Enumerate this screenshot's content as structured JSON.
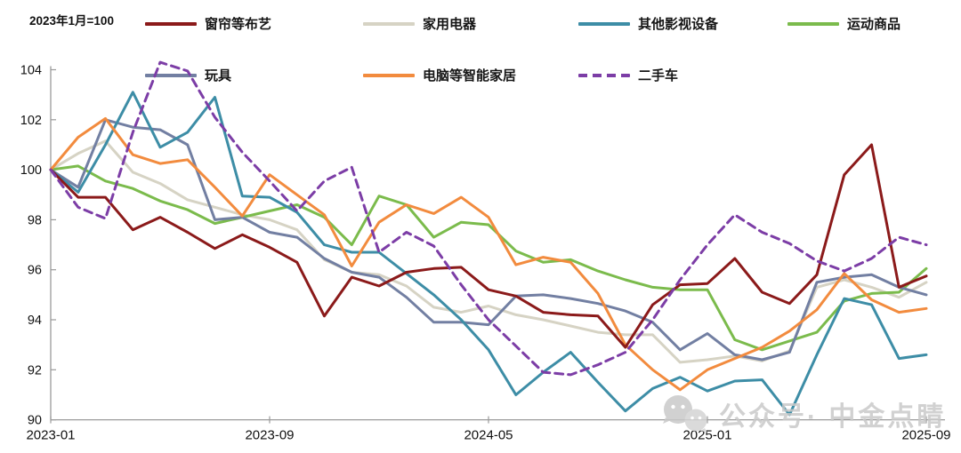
{
  "note": "2023年1月=100",
  "watermark": {
    "text": "公众号· 中金点睛"
  },
  "chart_data": {
    "type": "line",
    "index_note": "2023年1月=100",
    "ylim": [
      90,
      104
    ],
    "yticks": [
      90,
      92,
      94,
      96,
      98,
      100,
      102,
      104
    ],
    "grid": false,
    "legend_position": "top",
    "axis_color": "#9a9a9a",
    "x": [
      "2023-01",
      "2023-02",
      "2023-03",
      "2023-04",
      "2023-05",
      "2023-06",
      "2023-07",
      "2023-08",
      "2023-09",
      "2023-10",
      "2023-11",
      "2023-12",
      "2024-01",
      "2024-02",
      "2024-03",
      "2024-04",
      "2024-05",
      "2024-06",
      "2024-07",
      "2024-08",
      "2024-09",
      "2024-10",
      "2024-11",
      "2024-12",
      "2025-01",
      "2025-02",
      "2025-03",
      "2025-04",
      "2025-05",
      "2025-06",
      "2025-07",
      "2025-08",
      "2025-09"
    ],
    "xticks": [
      {
        "label": "2023-01",
        "index": 0
      },
      {
        "label": "2023-09",
        "index": 8
      },
      {
        "label": "2024-05",
        "index": 16
      },
      {
        "label": "2025-01",
        "index": 24
      },
      {
        "label": "2025-09",
        "index": 32
      }
    ],
    "series": [
      {
        "name": "窗帘等布艺",
        "color": "#8B1A1A",
        "dashed": false,
        "values": [
          100,
          98.9,
          98.9,
          97.6,
          98.1,
          97.5,
          96.85,
          97.4,
          96.9,
          96.3,
          94.15,
          95.7,
          95.35,
          95.9,
          96.05,
          96.1,
          95.2,
          94.95,
          94.3,
          94.2,
          94.15,
          92.9,
          94.6,
          95.4,
          95.45,
          96.45,
          95.1,
          94.65,
          95.8,
          99.8,
          101.0,
          95.3,
          95.75
        ]
      },
      {
        "name": "家用电器",
        "color": "#D6D3C4",
        "dashed": false,
        "values": [
          100,
          100.65,
          101.15,
          99.9,
          99.45,
          98.8,
          98.5,
          98.2,
          98.0,
          97.6,
          96.4,
          95.9,
          95.8,
          95.35,
          94.5,
          94.3,
          94.55,
          94.2,
          94.0,
          93.75,
          93.5,
          93.4,
          93.4,
          92.3,
          92.4,
          92.55,
          92.35,
          92.75,
          95.3,
          95.6,
          95.3,
          94.9,
          95.5
        ]
      },
      {
        "name": "其他影视设备",
        "color": "#3D8DA6",
        "dashed": false,
        "values": [
          100,
          99.1,
          101.0,
          103.1,
          100.9,
          101.5,
          102.9,
          98.95,
          98.9,
          98.3,
          97.0,
          96.7,
          96.7,
          95.85,
          95.0,
          94.0,
          92.8,
          91.0,
          91.9,
          92.7,
          91.5,
          90.35,
          91.25,
          91.7,
          91.15,
          91.55,
          91.6,
          90.2,
          92.6,
          94.85,
          94.6,
          92.45,
          92.6
        ]
      },
      {
        "name": "运动商品",
        "color": "#7BBB4C",
        "dashed": false,
        "values": [
          100,
          100.15,
          99.55,
          99.25,
          98.75,
          98.4,
          97.85,
          98.1,
          98.35,
          98.6,
          98.1,
          97.0,
          98.95,
          98.6,
          97.3,
          97.9,
          97.8,
          96.75,
          96.3,
          96.4,
          95.95,
          95.6,
          95.3,
          95.2,
          95.2,
          93.2,
          92.8,
          93.15,
          93.5,
          94.75,
          95.05,
          95.1,
          96.05
        ]
      },
      {
        "name": "玩具",
        "color": "#727FA2",
        "dashed": false,
        "values": [
          100,
          99.3,
          102.0,
          101.7,
          101.6,
          101.0,
          98.0,
          98.1,
          97.5,
          97.3,
          96.45,
          95.9,
          95.7,
          94.9,
          93.9,
          93.9,
          93.8,
          94.95,
          95.0,
          94.85,
          94.65,
          94.35,
          93.9,
          92.8,
          93.45,
          92.6,
          92.4,
          92.7,
          95.5,
          95.7,
          95.8,
          95.3,
          95.0
        ]
      },
      {
        "name": "电脑等智能家居",
        "color": "#F28B3E",
        "dashed": false,
        "values": [
          100,
          101.3,
          102.05,
          100.6,
          100.25,
          100.4,
          99.3,
          98.15,
          99.8,
          99.0,
          98.2,
          96.15,
          97.9,
          98.6,
          98.25,
          98.9,
          98.1,
          96.2,
          96.5,
          96.3,
          95.05,
          93.0,
          92.0,
          91.2,
          92.0,
          92.45,
          92.9,
          93.55,
          94.4,
          95.85,
          94.8,
          94.3,
          94.45
        ]
      },
      {
        "name": "二手车",
        "color": "#7C3DA6",
        "dashed": true,
        "values": [
          100,
          98.5,
          98.05,
          101.5,
          104.3,
          103.95,
          102.1,
          100.7,
          99.55,
          98.35,
          99.55,
          100.1,
          96.7,
          97.5,
          96.95,
          95.4,
          94.0,
          92.95,
          91.9,
          91.8,
          92.2,
          92.7,
          94.0,
          95.6,
          97.0,
          98.2,
          97.5,
          97.05,
          96.35,
          95.95,
          96.45,
          97.3,
          97.0
        ]
      }
    ]
  }
}
